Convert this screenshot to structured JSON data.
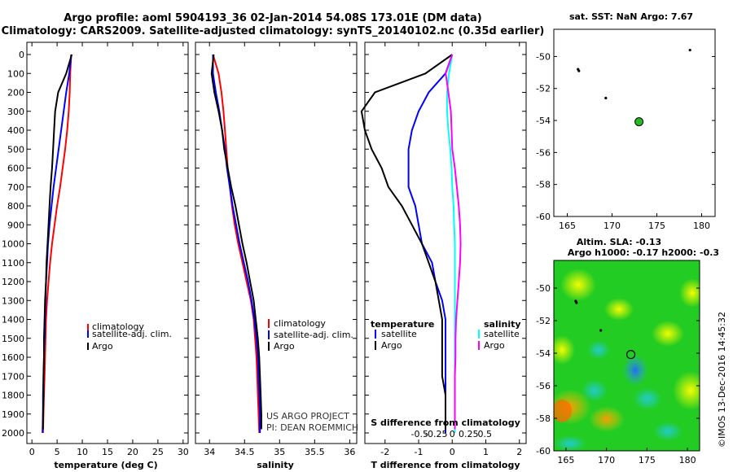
{
  "header": {
    "line1": "Argo profile: aoml 5904193_36 02-Jan-2014 54.08S 173.01E (DM data)",
    "line2": "Climatology: CARS2009. Satellite-adjusted climatology: synTS_20140102.nc (0.35d earlier)"
  },
  "colors": {
    "argo": "#000000",
    "clim": "#ff0000",
    "sat": "#0000ff",
    "sal_sat": "#00ffff",
    "sal_argo": "#ff00ff",
    "sla_map": "#22cc22"
  },
  "chart_data": [
    {
      "type": "line",
      "panel": "temperature",
      "xlabel": "temperature (deg C)",
      "xlim": [
        -1,
        31
      ],
      "ylim": [
        2050,
        0
      ],
      "xticks": [
        0,
        5,
        10,
        15,
        20,
        25,
        30
      ],
      "yticks": [
        0,
        100,
        200,
        300,
        400,
        500,
        600,
        700,
        800,
        900,
        1000,
        1100,
        1200,
        1300,
        1400,
        1500,
        1600,
        1700,
        1800,
        1900,
        2000
      ],
      "legend": [
        "climatology",
        "satellite-adj. clim.",
        "Argo"
      ],
      "series": [
        {
          "name": "climatology",
          "x": [
            7.8,
            7.6,
            7.5,
            7.3,
            7.0,
            6.6,
            6.1,
            5.6,
            5.0,
            4.5,
            4.0,
            3.6,
            3.3,
            3.0,
            2.8,
            2.7,
            2.6,
            2.5,
            2.4,
            2.3,
            2.2
          ],
          "y": [
            0,
            100,
            200,
            300,
            400,
            500,
            600,
            700,
            800,
            900,
            1000,
            1100,
            1200,
            1300,
            1400,
            1500,
            1600,
            1700,
            1800,
            1900,
            2000
          ]
        },
        {
          "name": "satellite-adj. clim.",
          "x": [
            7.8,
            7.4,
            6.8,
            6.3,
            5.8,
            5.3,
            4.8,
            4.3,
            3.9,
            3.5,
            3.2,
            3.0,
            2.8,
            2.7,
            2.6,
            2.5,
            2.4,
            2.3,
            2.2,
            2.2,
            2.1
          ],
          "y": [
            0,
            100,
            200,
            300,
            400,
            500,
            600,
            700,
            800,
            900,
            1000,
            1100,
            1200,
            1300,
            1400,
            1500,
            1600,
            1700,
            1800,
            1900,
            2000
          ]
        },
        {
          "name": "Argo",
          "x": [
            7.9,
            6.8,
            5.2,
            4.6,
            4.4,
            4.2,
            4.0,
            3.7,
            3.5,
            3.3,
            3.1,
            2.9,
            2.8,
            2.6,
            2.5,
            2.4,
            2.4,
            2.3,
            2.3,
            2.2,
            2.2
          ],
          "y": [
            0,
            100,
            200,
            300,
            400,
            500,
            600,
            700,
            800,
            900,
            1000,
            1100,
            1200,
            1300,
            1400,
            1500,
            1600,
            1700,
            1800,
            1900,
            1980
          ]
        }
      ]
    },
    {
      "type": "line",
      "panel": "salinity",
      "xlabel": "salinity",
      "xlim": [
        33.8,
        36.1
      ],
      "ylim": [
        2050,
        0
      ],
      "xticks": [
        34,
        34.5,
        35,
        35.5,
        36
      ],
      "legend": [
        "climatology",
        "satellite-adj. clim.",
        "Argo"
      ],
      "credit": [
        "US ARGO PROJECT",
        "PI: DEAN ROEMMICH"
      ],
      "series": [
        {
          "name": "climatology",
          "x": [
            34.05,
            34.13,
            34.17,
            34.2,
            34.22,
            34.24,
            34.26,
            34.29,
            34.32,
            34.36,
            34.41,
            34.47,
            34.53,
            34.59,
            34.63,
            34.65,
            34.67,
            34.68,
            34.69,
            34.7,
            34.71
          ],
          "y": [
            0,
            100,
            200,
            300,
            400,
            500,
            600,
            700,
            800,
            900,
            1000,
            1100,
            1200,
            1300,
            1400,
            1500,
            1600,
            1700,
            1800,
            1900,
            2000
          ]
        },
        {
          "name": "satellite-adj. clim.",
          "x": [
            34.05,
            34.05,
            34.09,
            34.14,
            34.18,
            34.22,
            34.25,
            34.29,
            34.33,
            34.38,
            34.43,
            34.49,
            34.55,
            34.6,
            34.64,
            34.67,
            34.69,
            34.7,
            34.71,
            34.72,
            34.72
          ],
          "y": [
            0,
            100,
            200,
            300,
            400,
            500,
            600,
            700,
            800,
            900,
            1000,
            1100,
            1200,
            1300,
            1400,
            1500,
            1600,
            1700,
            1800,
            1900,
            2000
          ]
        },
        {
          "name": "Argo",
          "x": [
            34.06,
            34.03,
            34.07,
            34.13,
            34.18,
            34.21,
            34.26,
            34.31,
            34.37,
            34.42,
            34.47,
            34.53,
            34.58,
            34.63,
            34.66,
            34.69,
            34.71,
            34.72,
            34.73,
            34.74,
            34.74
          ],
          "y": [
            0,
            100,
            200,
            300,
            400,
            500,
            600,
            700,
            800,
            900,
            1000,
            1100,
            1200,
            1300,
            1400,
            1500,
            1600,
            1700,
            1800,
            1900,
            1980
          ]
        }
      ]
    },
    {
      "type": "line",
      "panel": "difference",
      "xlabel": "T difference from climatology",
      "top_axis_label": "S difference from climatology",
      "xlim": [
        -2.6,
        2.2
      ],
      "ylim": [
        2050,
        0
      ],
      "xticks": [
        -2,
        -1,
        0,
        1,
        2
      ],
      "xticklabels": [
        "-2",
        "-1",
        "0",
        "1",
        "2"
      ],
      "sticks": [
        -0.5,
        -0.25,
        0,
        0.25,
        0.5
      ],
      "sticklabels": [
        "-0.5",
        "-0.25",
        "0",
        "0.25",
        "0.5"
      ],
      "legend_temperature": {
        "title": "temperature",
        "items": [
          "satellite",
          "Argo"
        ]
      },
      "legend_salinity": {
        "title": "salinity",
        "items": [
          "satellite",
          "Argo"
        ]
      },
      "series": [
        {
          "name": "temperature satellite",
          "x": [
            0.0,
            -0.2,
            -0.7,
            -1.0,
            -1.2,
            -1.3,
            -1.3,
            -1.3,
            -1.1,
            -1.0,
            -0.9,
            -0.6,
            -0.5,
            -0.3,
            -0.2,
            -0.2,
            -0.2,
            -0.2,
            -0.2,
            -0.2,
            -0.2
          ],
          "y": [
            0,
            100,
            200,
            300,
            400,
            500,
            600,
            700,
            800,
            900,
            1000,
            1100,
            1200,
            1300,
            1400,
            1500,
            1600,
            1700,
            1800,
            1900,
            2000
          ]
        },
        {
          "name": "temperature Argo",
          "x": [
            0.0,
            -0.8,
            -2.3,
            -2.7,
            -2.6,
            -2.4,
            -2.1,
            -1.9,
            -1.5,
            -1.2,
            -0.9,
            -0.7,
            -0.5,
            -0.4,
            -0.3,
            -0.3,
            -0.3,
            -0.3,
            -0.2,
            -0.2,
            -0.2
          ],
          "y": [
            0,
            100,
            200,
            300,
            400,
            500,
            600,
            700,
            800,
            900,
            1000,
            1100,
            1200,
            1300,
            1400,
            1500,
            1600,
            1700,
            1800,
            1900,
            1980
          ]
        },
        {
          "name": "salinity satellite",
          "x": [
            0.0,
            -0.05,
            -0.08,
            -0.08,
            -0.06,
            -0.03,
            -0.01,
            0.0,
            0.02,
            0.03,
            0.04,
            0.04,
            0.04,
            0.04,
            0.04,
            0.04,
            0.04,
            0.04,
            0.04,
            0.04,
            0.04
          ],
          "y": [
            0,
            100,
            200,
            300,
            400,
            500,
            600,
            700,
            800,
            900,
            1000,
            1100,
            1200,
            1300,
            1400,
            1500,
            1600,
            1700,
            1800,
            1900,
            2000
          ]
        },
        {
          "name": "salinity Argo",
          "x": [
            0.0,
            -0.1,
            -0.06,
            -0.02,
            -0.01,
            0.0,
            0.04,
            0.07,
            0.1,
            0.12,
            0.13,
            0.12,
            0.1,
            0.08,
            0.06,
            0.05,
            0.05,
            0.04,
            0.04,
            0.04,
            0.04
          ],
          "y": [
            0,
            100,
            200,
            300,
            400,
            500,
            600,
            700,
            800,
            900,
            1000,
            1100,
            1200,
            1300,
            1400,
            1500,
            1600,
            1700,
            1800,
            1900,
            1980
          ]
        }
      ]
    },
    {
      "type": "scatter",
      "panel": "sst_map",
      "title": "sat. SST: NaN Argo: 7.67",
      "xlim": [
        163.5,
        181.5
      ],
      "ylim": [
        -60,
        -48.3
      ],
      "xticks": [
        165,
        170,
        175,
        180
      ],
      "yticks": [
        -50,
        -52,
        -54,
        -56,
        -58,
        -60
      ],
      "track_points": [
        [
          166.2,
          -50.8
        ],
        [
          166.3,
          -50.9
        ],
        [
          169.3,
          -52.6
        ],
        [
          178.7,
          -49.6
        ]
      ],
      "profile": [
        173.01,
        -54.08
      ]
    },
    {
      "type": "heatmap",
      "panel": "sla_map",
      "title": "Altim. SLA: -0.13",
      "subtitle": "Argo h1000: -0.17 h2000: -0.3",
      "xlim": [
        163.5,
        181.5
      ],
      "ylim": [
        -60,
        -48.3
      ],
      "xticks": [
        165,
        170,
        175,
        180
      ],
      "yticks": [
        -50,
        -52,
        -54,
        -56,
        -58,
        -60
      ],
      "track_points": [
        [
          166.2,
          -50.8
        ],
        [
          166.3,
          -50.9
        ],
        [
          169.3,
          -52.6
        ]
      ],
      "profile": [
        173.01,
        -54.08
      ],
      "stamp": "©IMOS 13-Dec-2016 14:45:32"
    }
  ]
}
